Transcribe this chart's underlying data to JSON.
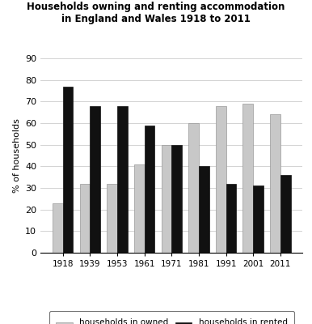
{
  "title_line1": "Households owning and renting accommodation",
  "title_line2": "in England and Wales 1918 to 2011",
  "years": [
    "1918",
    "1939",
    "1953",
    "1961",
    "1971",
    "1981",
    "1991",
    "2001",
    "2011"
  ],
  "owned": [
    23,
    32,
    32,
    41,
    50,
    60,
    68,
    69,
    64
  ],
  "rented": [
    77,
    68,
    68,
    59,
    50,
    40,
    32,
    31,
    36
  ],
  "owned_color": "#c8c8c8",
  "rented_color": "#111111",
  "ylabel": "% of households",
  "ylim": [
    0,
    90
  ],
  "yticks": [
    0,
    10,
    20,
    30,
    40,
    50,
    60,
    70,
    80,
    90
  ],
  "legend_owned": "households in owned\naccommodation",
  "legend_rented": "households in rented\naccommodation",
  "bar_width": 0.38,
  "background_color": "#ffffff",
  "grid_color": "#cccccc"
}
